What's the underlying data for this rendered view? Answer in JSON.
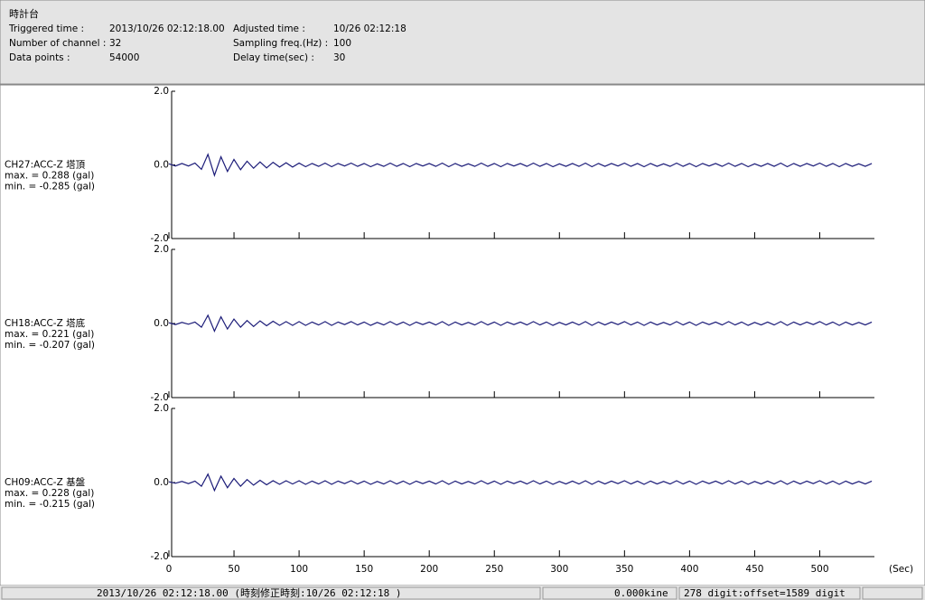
{
  "header": {
    "title": "時計台",
    "fields": [
      [
        "Triggered time :",
        "2013/10/26 02:12:18.00",
        "Adjusted time :",
        "10/26 02:12:18"
      ],
      [
        "Number of channel :",
        "32",
        "Sampling freq.(Hz) :",
        "100"
      ],
      [
        "Data points :",
        "54000",
        "Delay time(sec) :",
        "30"
      ]
    ]
  },
  "chart_data": {
    "type": "line",
    "x_label": "(Sec)",
    "xlim": [
      0,
      542
    ],
    "xticks": [
      0,
      50,
      100,
      150,
      200,
      250,
      300,
      350,
      400,
      450,
      500
    ],
    "ylim": [
      -2,
      2
    ],
    "yticks": [
      {
        "value": 2,
        "label": "2.0"
      },
      {
        "value": 0,
        "label": "0.0"
      },
      {
        "value": -2,
        "label": "-2.0"
      }
    ],
    "x": [
      0,
      5,
      10,
      15,
      20,
      25,
      30,
      35,
      40,
      45,
      50,
      55,
      60,
      65,
      70,
      75,
      80,
      85,
      90,
      95,
      100,
      105,
      110,
      115,
      120,
      125,
      130,
      135,
      140,
      145,
      150,
      155,
      160,
      165,
      170,
      175,
      180,
      185,
      190,
      195,
      200,
      205,
      210,
      215,
      220,
      225,
      230,
      235,
      240,
      245,
      250,
      255,
      260,
      265,
      270,
      275,
      280,
      285,
      290,
      295,
      300,
      305,
      310,
      315,
      320,
      325,
      330,
      335,
      340,
      345,
      350,
      355,
      360,
      365,
      370,
      375,
      380,
      385,
      390,
      395,
      400,
      405,
      410,
      415,
      420,
      425,
      430,
      435,
      440,
      445,
      450,
      455,
      460,
      465,
      470,
      475,
      480,
      485,
      490,
      495,
      500,
      505,
      510,
      515,
      520,
      525,
      530,
      535,
      540
    ],
    "series": [
      {
        "name": "CH27:ACC-Z 塔頂",
        "stats": [
          "max. = 0.288 (gal)",
          "min. = -0.285 (gal)"
        ],
        "color": "#1b1b78",
        "values": [
          0.03,
          -0.03,
          0.04,
          -0.03,
          0.05,
          -0.12,
          0.288,
          -0.285,
          0.22,
          -0.18,
          0.15,
          -0.13,
          0.1,
          -0.09,
          0.08,
          -0.08,
          0.07,
          -0.06,
          0.06,
          -0.06,
          0.05,
          -0.05,
          0.04,
          -0.04,
          0.05,
          -0.05,
          0.04,
          -0.03,
          0.05,
          -0.04,
          0.04,
          -0.05,
          0.03,
          -0.04,
          0.05,
          -0.04,
          0.04,
          -0.05,
          0.04,
          -0.03,
          0.04,
          -0.04,
          0.05,
          -0.05,
          0.04,
          -0.04,
          0.03,
          -0.04,
          0.05,
          -0.04,
          0.04,
          -0.05,
          0.04,
          -0.03,
          0.04,
          -0.04,
          0.05,
          -0.04,
          0.04,
          -0.05,
          0.03,
          -0.04,
          0.04,
          -0.04,
          0.05,
          -0.05,
          0.04,
          -0.04,
          0.04,
          -0.03,
          0.05,
          -0.04,
          0.04,
          -0.05,
          0.04,
          -0.04,
          0.03,
          -0.04,
          0.05,
          -0.04,
          0.04,
          -0.05,
          0.04,
          -0.03,
          0.04,
          -0.04,
          0.05,
          -0.04,
          0.04,
          -0.05,
          0.03,
          -0.04,
          0.04,
          -0.04,
          0.05,
          -0.05,
          0.04,
          -0.04,
          0.04,
          -0.03,
          0.05,
          -0.04,
          0.04,
          -0.05,
          0.04,
          -0.04,
          0.03,
          -0.04,
          0.04
        ]
      },
      {
        "name": "CH18:ACC-Z 塔底",
        "stats": [
          "max. = 0.221 (gal)",
          "min. = -0.207 (gal)"
        ],
        "color": "#1b1b78",
        "values": [
          0.02,
          -0.03,
          0.03,
          -0.02,
          0.04,
          -0.1,
          0.221,
          -0.207,
          0.18,
          -0.15,
          0.12,
          -0.1,
          0.08,
          -0.08,
          0.07,
          -0.06,
          0.06,
          -0.05,
          0.05,
          -0.05,
          0.05,
          -0.05,
          0.04,
          -0.04,
          0.05,
          -0.05,
          0.04,
          -0.03,
          0.05,
          -0.04,
          0.04,
          -0.05,
          0.03,
          -0.04,
          0.05,
          -0.04,
          0.04,
          -0.05,
          0.04,
          -0.03,
          0.04,
          -0.04,
          0.05,
          -0.05,
          0.04,
          -0.04,
          0.03,
          -0.04,
          0.05,
          -0.04,
          0.04,
          -0.05,
          0.04,
          -0.03,
          0.04,
          -0.04,
          0.05,
          -0.04,
          0.04,
          -0.05,
          0.03,
          -0.04,
          0.04,
          -0.04,
          0.05,
          -0.05,
          0.04,
          -0.04,
          0.04,
          -0.03,
          0.05,
          -0.04,
          0.04,
          -0.05,
          0.04,
          -0.04,
          0.03,
          -0.04,
          0.05,
          -0.04,
          0.04,
          -0.05,
          0.04,
          -0.03,
          0.04,
          -0.04,
          0.05,
          -0.04,
          0.04,
          -0.05,
          0.03,
          -0.04,
          0.04,
          -0.04,
          0.05,
          -0.05,
          0.04,
          -0.04,
          0.04,
          -0.03,
          0.05,
          -0.04,
          0.04,
          -0.05,
          0.04,
          -0.04,
          0.03,
          -0.04,
          0.04
        ]
      },
      {
        "name": "CH09:ACC-Z 基盤",
        "stats": [
          "max. = 0.228 (gal)",
          "min. = -0.215 (gal)"
        ],
        "color": "#1b1b78",
        "values": [
          0.02,
          -0.02,
          0.03,
          -0.03,
          0.04,
          -0.1,
          0.228,
          -0.215,
          0.17,
          -0.14,
          0.11,
          -0.1,
          0.08,
          -0.07,
          0.06,
          -0.06,
          0.05,
          -0.05,
          0.05,
          -0.04,
          0.05,
          -0.05,
          0.04,
          -0.04,
          0.05,
          -0.05,
          0.04,
          -0.03,
          0.05,
          -0.04,
          0.04,
          -0.05,
          0.03,
          -0.04,
          0.05,
          -0.04,
          0.04,
          -0.05,
          0.04,
          -0.03,
          0.04,
          -0.04,
          0.05,
          -0.05,
          0.04,
          -0.04,
          0.03,
          -0.04,
          0.05,
          -0.04,
          0.04,
          -0.05,
          0.04,
          -0.03,
          0.04,
          -0.04,
          0.05,
          -0.04,
          0.04,
          -0.05,
          0.03,
          -0.04,
          0.04,
          -0.04,
          0.05,
          -0.05,
          0.04,
          -0.04,
          0.04,
          -0.03,
          0.05,
          -0.04,
          0.04,
          -0.05,
          0.04,
          -0.04,
          0.03,
          -0.04,
          0.05,
          -0.04,
          0.04,
          -0.05,
          0.04,
          -0.03,
          0.04,
          -0.04,
          0.05,
          -0.04,
          0.04,
          -0.05,
          0.03,
          -0.04,
          0.04,
          -0.04,
          0.05,
          -0.05,
          0.04,
          -0.04,
          0.04,
          -0.03,
          0.05,
          -0.04,
          0.04,
          -0.05,
          0.04,
          -0.04,
          0.03,
          -0.04,
          0.04
        ]
      }
    ]
  },
  "status_bar": [
    "2013/10/26 02:12:18.00  (時刻修正時刻:10/26 02:12:18  )",
    "0.000kine",
    "278 digit:offset=1589 digit"
  ]
}
